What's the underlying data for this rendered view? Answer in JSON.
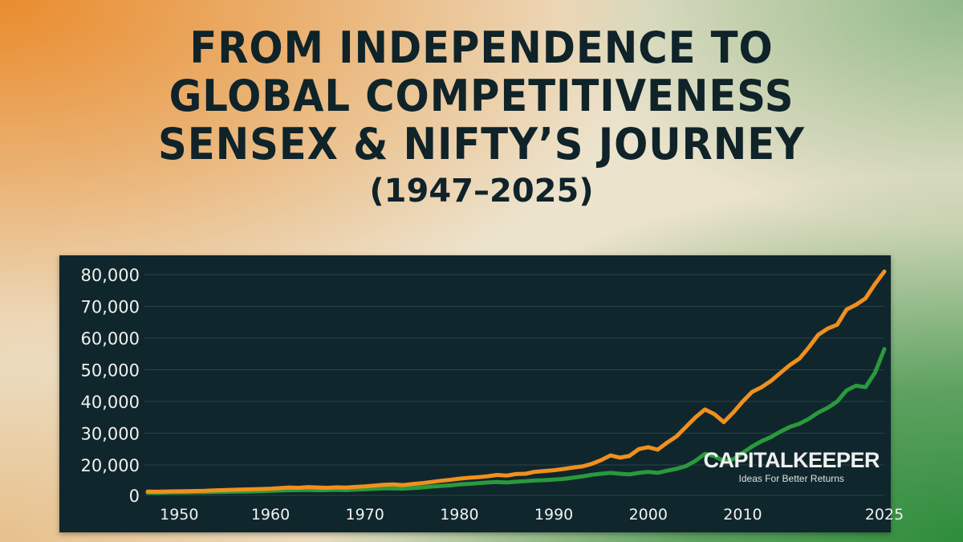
{
  "header": {
    "lines": [
      "FROM INDEPENDENCE TO",
      "GLOBAL COMPETITIVENESS",
      "SENSEX & NIFTY’S JOURNEY"
    ],
    "years": "(1947–2025)"
  },
  "brand": {
    "name": "CAPITALKEEPER",
    "tagline": "Ideas For Better Returns"
  },
  "colors": {
    "page_orange": "#e98724",
    "page_green": "#2e8c3c",
    "panel": "#10262d",
    "sensex": "#f0901e",
    "nifty": "#2a9a3c",
    "title": "#0f2329"
  },
  "chart_data": {
    "type": "line",
    "title": "",
    "xlabel": "",
    "ylabel": "",
    "ylim": [
      0,
      80000
    ],
    "xlim": [
      1947,
      2025
    ],
    "grid": true,
    "legend": "none",
    "y_ticks": [
      0,
      20000,
      30000,
      40000,
      50000,
      60000,
      70000,
      80000
    ],
    "y_tick_labels": [
      "0",
      "20,000",
      "30,000",
      "40,000",
      "50,000",
      "60,000",
      "70,000",
      "80,000"
    ],
    "x_ticks": [
      1950,
      1960,
      1970,
      1980,
      1990,
      2000,
      2010,
      2025
    ],
    "x_tick_labels": [
      "1950",
      "1960",
      "1970",
      "1980",
      "1990",
      "2000",
      "2010",
      "2025"
    ],
    "series": [
      {
        "color": "#f0901e",
        "x": [
          1947,
          1948,
          1949,
          1950,
          1951,
          1952,
          1953,
          1954,
          1955,
          1956,
          1957,
          1958,
          1959,
          1960,
          1961,
          1962,
          1963,
          1964,
          1965,
          1966,
          1967,
          1968,
          1969,
          1970,
          1971,
          1972,
          1973,
          1974,
          1975,
          1976,
          1977,
          1978,
          1979,
          1980,
          1981,
          1982,
          1983,
          1984,
          1985,
          1986,
          1987,
          1988,
          1989,
          1990,
          1991,
          1992,
          1993,
          1994,
          1995,
          1996,
          1997,
          1998,
          1999,
          2000,
          2001,
          2002,
          2003,
          2004,
          2005,
          2006,
          2007,
          2008,
          2009,
          2010,
          2011,
          2012,
          2013,
          2014,
          2015,
          2016,
          2017,
          2018,
          2019,
          2020,
          2021,
          2022,
          2023,
          2024,
          2025
        ],
        "values": [
          2500,
          2400,
          2600,
          2700,
          2800,
          2900,
          3000,
          3300,
          3500,
          3700,
          3900,
          4000,
          4200,
          4400,
          4800,
          5200,
          5000,
          5500,
          5200,
          5000,
          5300,
          5100,
          5600,
          5900,
          6400,
          7000,
          7200,
          6800,
          7400,
          8000,
          8800,
          9600,
          10200,
          11000,
          11600,
          12000,
          12600,
          13400,
          13000,
          14000,
          14200,
          15500,
          16000,
          16500,
          17300,
          18200,
          19000,
          20300,
          21500,
          23000,
          22300,
          22800,
          25000,
          25600,
          24800,
          27000,
          29000,
          32000,
          35000,
          37500,
          36000,
          33500,
          36500,
          40000,
          43000,
          44500,
          46500,
          49000,
          51500,
          53500,
          57000,
          61000,
          63000,
          64200,
          69000,
          70500,
          72500,
          77000,
          81000
        ]
      },
      {
        "color": "#2a9a3c",
        "x": [
          1947,
          1948,
          1949,
          1950,
          1951,
          1952,
          1953,
          1954,
          1955,
          1956,
          1957,
          1958,
          1959,
          1960,
          1961,
          1962,
          1963,
          1964,
          1965,
          1966,
          1967,
          1968,
          1969,
          1970,
          1971,
          1972,
          1973,
          1974,
          1975,
          1976,
          1977,
          1978,
          1979,
          1980,
          1981,
          1982,
          1983,
          1984,
          1985,
          1986,
          1987,
          1988,
          1989,
          1990,
          1991,
          1992,
          1993,
          1994,
          1995,
          1996,
          1997,
          1998,
          1999,
          2000,
          2001,
          2002,
          2003,
          2004,
          2005,
          2006,
          2007,
          2008,
          2009,
          2010,
          2011,
          2012,
          2013,
          2014,
          2015,
          2016,
          2017,
          2018,
          2019,
          2020,
          2021,
          2022,
          2023,
          2024,
          2025
        ],
        "values": [
          1800,
          1800,
          1900,
          2000,
          2000,
          2100,
          2100,
          2200,
          2300,
          2400,
          2500,
          2600,
          2800,
          3000,
          3200,
          3400,
          3500,
          3600,
          3400,
          3500,
          3700,
          3500,
          3800,
          4000,
          4300,
          4600,
          4700,
          4400,
          4800,
          5200,
          5800,
          6200,
          6600,
          7200,
          7600,
          8000,
          8500,
          8800,
          8500,
          9000,
          9300,
          9800,
          10000,
          10400,
          10800,
          11600,
          12400,
          13500,
          14200,
          14800,
          14200,
          13800,
          14800,
          15400,
          14800,
          16200,
          17500,
          19200,
          21300,
          23500,
          22800,
          21200,
          21800,
          23800,
          25800,
          27500,
          28800,
          30500,
          32000,
          33000,
          34500,
          36500,
          38000,
          40000,
          43500,
          45000,
          44500,
          49000,
          56500
        ]
      }
    ]
  }
}
